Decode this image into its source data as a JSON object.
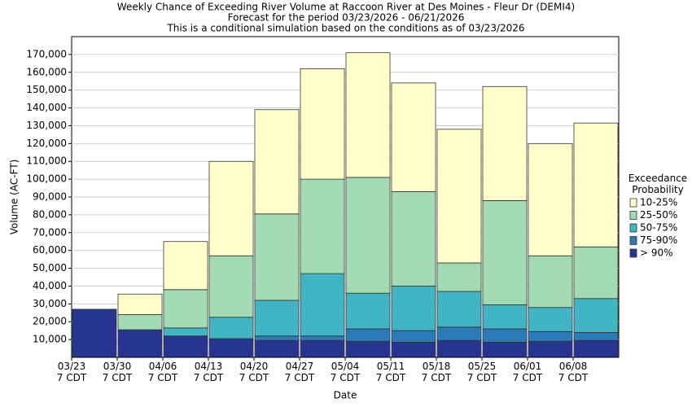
{
  "chart_data": {
    "type": "stacked_bar",
    "title": "Weekly Chance of Exceeding River Volume at Raccoon River at Des Moines - Fleur Dr (DEMI4)",
    "subtitle": "Forecast for the period 03/23/2026 - 06/21/2026",
    "subtitle2": "This is a conditional simulation based on the conditions as of 03/23/2026",
    "x_label": "Date",
    "y_label": "Volume (AC-FT)",
    "legend_title": "Exceedance\nProbability",
    "legend": "right",
    "categories": [
      "03/23\n7 CDT",
      "03/30\n7 CDT",
      "04/06\n7 CDT",
      "04/13\n7 CDT",
      "04/20\n7 CDT",
      "04/27\n7 CDT",
      "05/04\n7 CDT",
      "05/11\n7 CDT",
      "05/18\n7 CDT",
      "05/25\n7 CDT",
      "06/01\n7 CDT",
      "06/08\n7 CDT"
    ],
    "series": [
      {
        "name": "> 90%",
        "color": "#26358f",
        "values": [
          27000,
          15500,
          12000,
          10500,
          9500,
          9500,
          9000,
          8500,
          9500,
          8500,
          9000,
          9500
        ]
      },
      {
        "name": "75-90%",
        "color": "#2a7bb8",
        "values": [
          0,
          0,
          0,
          0,
          2500,
          2500,
          7000,
          6500,
          7500,
          7500,
          5500,
          4500
        ]
      },
      {
        "name": "50-75%",
        "color": "#42b5c5",
        "values": [
          0,
          0,
          4500,
          12000,
          20000,
          35000,
          20000,
          25000,
          20000,
          13500,
          13500,
          19000
        ]
      },
      {
        "name": "25-50%",
        "color": "#a2dab4",
        "values": [
          0,
          8500,
          21500,
          34500,
          48500,
          53000,
          65000,
          53000,
          16000,
          58500,
          29000,
          29000
        ]
      },
      {
        "name": "10-25%",
        "color": "#ffffcc",
        "values": [
          0,
          11500,
          27000,
          53000,
          58500,
          62000,
          70000,
          61000,
          75000,
          64000,
          63000,
          69500
        ]
      }
    ],
    "ylim": [
      0,
      180000
    ],
    "yticks": [
      {
        "value": 10000,
        "label": "10,000"
      },
      {
        "value": 20000,
        "label": "20,000"
      },
      {
        "value": 30000,
        "label": "30,000"
      },
      {
        "value": 40000,
        "label": "40,000"
      },
      {
        "value": 50000,
        "label": "50,000"
      },
      {
        "value": 60000,
        "label": "60,000"
      },
      {
        "value": 70000,
        "label": "70,000"
      },
      {
        "value": 80000,
        "label": "80,000"
      },
      {
        "value": 90000,
        "label": "90,000"
      },
      {
        "value": 100000,
        "label": "100,000"
      },
      {
        "value": 110000,
        "label": "110,000"
      },
      {
        "value": 120000,
        "label": "120,000"
      },
      {
        "value": 130000,
        "label": "130,000"
      },
      {
        "value": 140000,
        "label": "140,000"
      },
      {
        "value": 150000,
        "label": "150,000"
      },
      {
        "value": 160000,
        "label": "160,000"
      },
      {
        "value": 170000,
        "label": "170,000"
      }
    ],
    "grid": true
  }
}
